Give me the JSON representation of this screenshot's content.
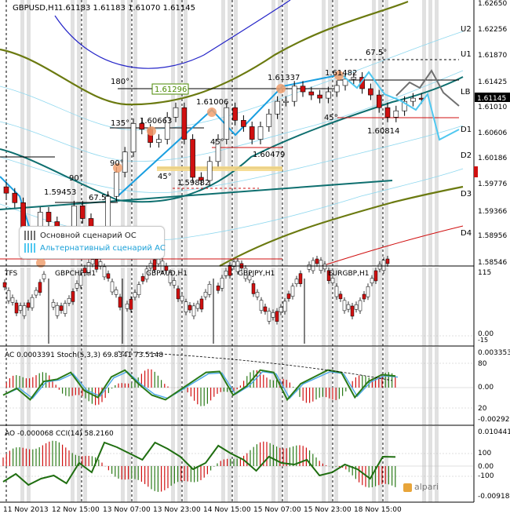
{
  "main_header": {
    "symbol": "GBPUSD,H1",
    "ohlc": "1.61183 1.61183 1.61070 1.61145"
  },
  "price_axis": {
    "ticks": [
      "1.62650",
      "1.62256",
      "1.61870",
      "1.61425",
      "1.61010",
      "1.60606",
      "1.60186",
      "1.59776",
      "1.59366",
      "1.58956",
      "1.58546"
    ],
    "current_price": "1.61145",
    "level_tags": [
      "U2",
      "U1",
      "LB",
      "D1",
      "D2",
      "D3",
      "D4"
    ]
  },
  "chart_annotations": {
    "price_labels": [
      "1.61482",
      "1.61337",
      "1.61006",
      "1.60663",
      "1.60479",
      "1.60814",
      "1.59882",
      "1.59453"
    ],
    "boxed_price": "1.61296",
    "angle_labels": [
      "180°",
      "135°",
      "90°",
      "90°",
      "67.5°",
      "67.5°",
      "45°",
      "45°",
      "45°"
    ]
  },
  "legend": {
    "main_scenario": "Основной сценарий ОС",
    "alt_scenario": "Альтернативный сценарий АС"
  },
  "tfs_panel": {
    "name": "TFS",
    "sections": [
      "GBPCHF,H1",
      "GBPAUD,H1",
      "GBPJPY,H1",
      "EURGBP,H1"
    ],
    "scale": [
      "115",
      "0.00",
      "-15"
    ]
  },
  "ac_panel": {
    "header": "AC 0.0003391  Stoch(5,3,3) 69.8341 73.5148",
    "scale": [
      "0.0033534",
      "80",
      "0.00",
      "20",
      "-0.002922"
    ]
  },
  "ao_panel": {
    "header": "AO -0.000068  CCI(14) 58.2160",
    "scale": [
      "0.0104413",
      "100",
      "0.00",
      "-100",
      "-0.009184"
    ]
  },
  "time_axis": [
    "11 Nov 2013",
    "12 Nov 15:00",
    "13 Nov 07:00",
    "13 Nov 23:00",
    "14 Nov 15:00",
    "15 Nov 07:00",
    "15 Nov 23:00",
    "18 Nov 15:00"
  ],
  "brand": "alpari",
  "colors": {
    "bull": "#ffffff",
    "bear": "#d01010",
    "teal_line": "#0e6f6f",
    "olive_band": "#6b7a10",
    "blue_band": "#2525c8",
    "light_band": "#8fd8ef",
    "scenario_main": "#707070",
    "scenario_alt": "#50c8f0",
    "fib_up_line": "#1a9fe0",
    "level_red": "#d01010",
    "stoch_green": "#2a7a18",
    "stoch_blue": "#4aa7e8",
    "grey_shading": "#dcdcdc"
  },
  "chart_data": [
    {
      "type": "line",
      "title": "GBPUSD,H1",
      "ylim": [
        1.585,
        1.627
      ],
      "series": [
        {
          "values": [
            1.5965,
            1.595,
            1.5905,
            1.588,
            1.5935,
            1.592,
            1.589,
            1.587,
            1.5945,
            1.5925,
            1.588,
            1.5905,
            1.596,
            1.5998,
            1.603,
            1.6075,
            1.6066,
            1.6045,
            1.605,
            1.6085,
            1.61,
            1.605,
            1.599,
            1.5985,
            1.6015,
            1.605,
            1.61,
            1.608,
            1.607,
            1.605,
            1.607,
            1.609,
            1.611,
            1.611,
            1.6134,
            1.6125,
            1.612,
            1.6115,
            1.6125,
            1.6135,
            1.6145,
            1.6148,
            1.613,
            1.612,
            1.61,
            1.6085,
            1.6095,
            1.611,
            1.6115,
            1.6114
          ]
        }
      ]
    },
    {
      "type": "line",
      "title": "AC 0.0003391  Stoch(5,3,3) 69.8341 73.5148",
      "ylim": [
        -0.002922,
        0.0033534
      ],
      "series": [
        {
          "values": [
            30,
            45,
            20,
            60,
            65,
            80,
            40,
            25,
            70,
            85,
            55,
            30,
            20,
            40,
            60,
            80,
            82,
            30,
            50,
            85,
            80,
            20,
            55,
            70,
            85,
            80,
            25,
            60,
            75,
            72
          ]
        }
      ]
    },
    {
      "type": "line",
      "title": "AO -0.000068  CCI(14) 58.2160",
      "ylim": [
        -0.009184,
        0.0104413
      ],
      "series": [
        {
          "values": [
            -100,
            -50,
            -120,
            -80,
            -60,
            -110,
            20,
            -40,
            150,
            120,
            80,
            40,
            150,
            110,
            60,
            -20,
            20,
            130,
            80,
            40,
            -30,
            60,
            20,
            10,
            40,
            -60,
            -40,
            10,
            -20,
            -80,
            60,
            58
          ]
        }
      ]
    }
  ]
}
